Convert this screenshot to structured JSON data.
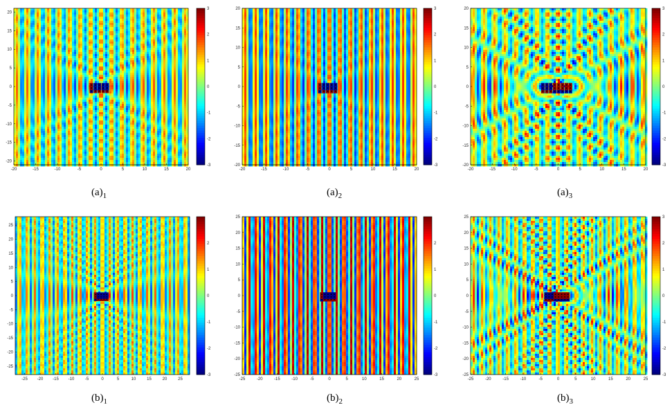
{
  "figure": {
    "panels": [
      {
        "caption_main": "(a)",
        "caption_sub": "1"
      },
      {
        "caption_main": "(a)",
        "caption_sub": "2"
      },
      {
        "caption_main": "(a)",
        "caption_sub": "3"
      },
      {
        "caption_main": "(b)",
        "caption_sub": "1"
      },
      {
        "caption_main": "(b)",
        "caption_sub": "2"
      },
      {
        "caption_main": "(b)",
        "caption_sub": "3"
      }
    ]
  },
  "chart_data": [
    {
      "type": "heatmap",
      "colormap": "jet",
      "pattern": "cloak-2",
      "x_ticks": [
        -20,
        -15,
        -10,
        -5,
        0,
        5,
        10,
        15,
        20
      ],
      "y_ticks": [
        20,
        15,
        10,
        5,
        0,
        -5,
        -10,
        -15,
        -20
      ],
      "xlim": [
        -20,
        20
      ],
      "ylim": [
        -21,
        21
      ],
      "clim": [
        -3,
        3
      ],
      "colorbar_ticks": [
        3,
        2,
        1,
        0,
        -1,
        -2,
        -3
      ]
    },
    {
      "type": "heatmap",
      "colormap": "jet",
      "pattern": "cloak-2b",
      "x_ticks": [
        -20,
        -15,
        -10,
        -5,
        0,
        5,
        10,
        15,
        20
      ],
      "y_ticks": [
        20,
        15,
        10,
        5,
        0,
        -5,
        -10,
        -15,
        -20
      ],
      "xlim": [
        -20,
        20
      ],
      "ylim": [
        -20,
        20
      ],
      "clim": [
        -3,
        3
      ],
      "colorbar_ticks": [
        3,
        2,
        1,
        0,
        -1,
        -2,
        -3
      ]
    },
    {
      "type": "heatmap",
      "colormap": "jet",
      "pattern": "radial",
      "x_ticks": [
        -20,
        -15,
        -10,
        -5,
        0,
        5,
        10,
        15,
        20
      ],
      "y_ticks": [
        20,
        15,
        10,
        5,
        0,
        -5,
        -10,
        -15,
        -20
      ],
      "xlim": [
        -20,
        20
      ],
      "ylim": [
        -20,
        20
      ],
      "clim": [
        -3,
        3
      ],
      "colorbar_ticks": [
        3,
        2,
        1,
        0,
        -1,
        -2,
        -3
      ]
    },
    {
      "type": "heatmap",
      "colormap": "jet",
      "pattern": "cloak-1",
      "x_ticks": [
        -25,
        -20,
        -15,
        -10,
        -5,
        0,
        5,
        10,
        15,
        20,
        25
      ],
      "y_ticks": [
        25,
        20,
        15,
        10,
        5,
        0,
        -5,
        -10,
        -15,
        -20,
        -25
      ],
      "xlim": [
        -28,
        28
      ],
      "ylim": [
        -28,
        28
      ],
      "clim": [
        -3,
        3
      ],
      "colorbar_ticks": [
        2,
        1,
        0,
        -1,
        -2,
        -3
      ]
    },
    {
      "type": "heatmap",
      "colormap": "jet",
      "pattern": "plane",
      "x_ticks": [
        -25,
        -20,
        -15,
        -10,
        -5,
        0,
        5,
        10,
        15,
        20,
        25
      ],
      "y_ticks": [
        25,
        20,
        15,
        10,
        5,
        0,
        -5,
        -10,
        -15,
        -20,
        -25
      ],
      "xlim": [
        -25,
        25
      ],
      "ylim": [
        -25,
        25
      ],
      "clim": [
        -3,
        3
      ],
      "colorbar_ticks": [
        2,
        1,
        0,
        -1,
        -2,
        -3
      ]
    },
    {
      "type": "heatmap",
      "colormap": "jet",
      "pattern": "radial-b",
      "x_ticks": [
        -25,
        -20,
        -15,
        -10,
        -5,
        0,
        5,
        10,
        15,
        20,
        25
      ],
      "y_ticks": [
        25,
        20,
        15,
        10,
        5,
        0,
        -5,
        -10,
        -15,
        -20,
        -25
      ],
      "xlim": [
        -25,
        25
      ],
      "ylim": [
        -25,
        25
      ],
      "clim": [
        -3,
        3
      ],
      "colorbar_ticks": [
        3,
        2,
        1,
        0,
        -1,
        -2,
        -3
      ]
    }
  ]
}
